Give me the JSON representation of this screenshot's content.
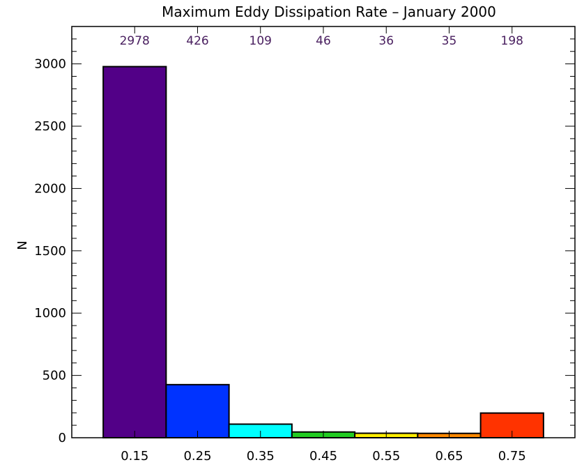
{
  "chart_data": {
    "type": "bar",
    "title": "Maximum Eddy Dissipation Rate  –  January 2000",
    "xlabel": "",
    "ylabel": "N",
    "categories": [
      "0.15",
      "0.25",
      "0.35",
      "0.45",
      "0.55",
      "0.65",
      "0.75"
    ],
    "values": [
      2978,
      426,
      109,
      46,
      36,
      35,
      198
    ],
    "count_labels": [
      "2978",
      "426",
      "109",
      "46",
      "36",
      "35",
      "198"
    ],
    "bar_colors": [
      "#520087",
      "#0033ff",
      "#00ffff",
      "#22cc22",
      "#ffee00",
      "#ff8800",
      "#ff3300"
    ],
    "ylim": [
      0,
      3300
    ],
    "yticks": [
      0,
      500,
      1000,
      1500,
      2000,
      2500,
      3000
    ],
    "ytick_labels": [
      "0",
      "500",
      "1000",
      "1500",
      "2000",
      "2500",
      "3000"
    ],
    "xlim": [
      0.05,
      0.85
    ],
    "grid": false
  }
}
